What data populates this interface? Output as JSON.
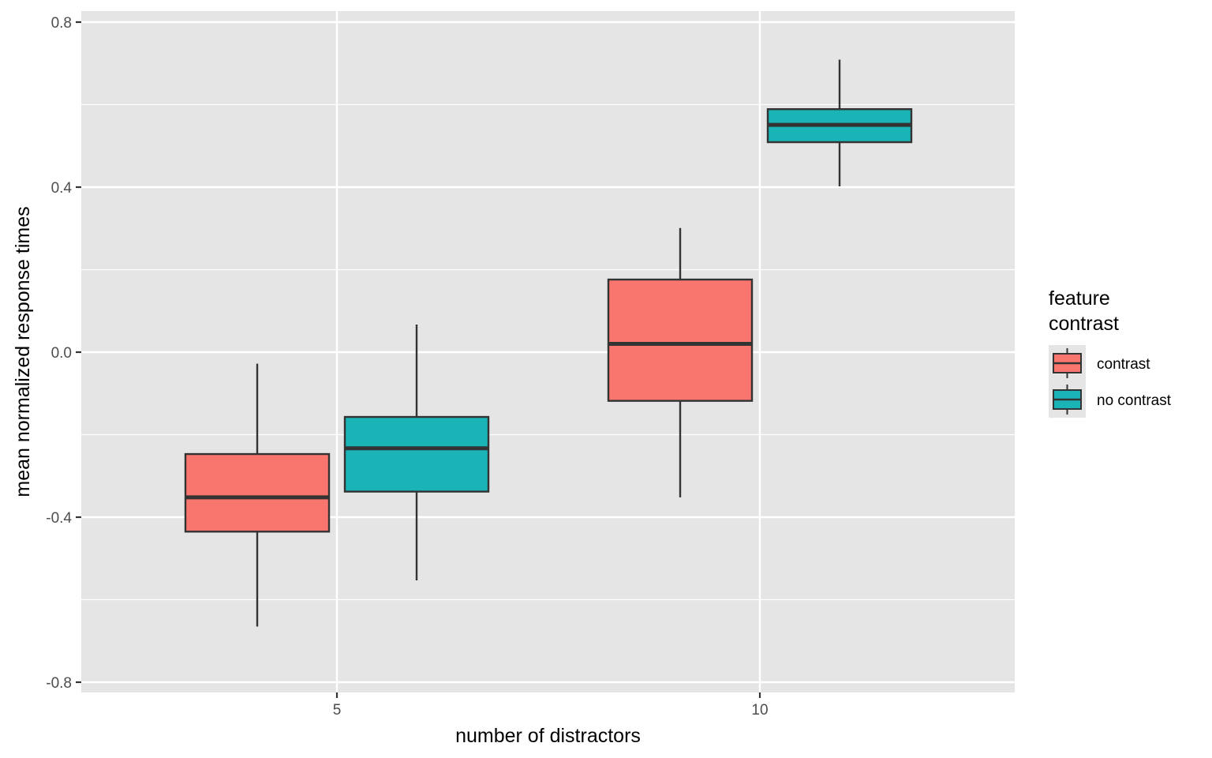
{
  "chart_data": {
    "type": "boxplot",
    "xlabel": "number of distractors",
    "ylabel": "mean normalized response times",
    "x_ticks": [
      5,
      10
    ],
    "x_tick_labels": [
      "5",
      "10"
    ],
    "xlim": [
      2,
      13
    ],
    "ylim": [
      -0.825,
      0.825
    ],
    "y_ticks": [
      -0.8,
      -0.4,
      0.0,
      0.4,
      0.8
    ],
    "y_tick_labels": [
      "-0.8",
      "-0.4",
      "0.0",
      "0.4",
      "0.8"
    ],
    "grid": true,
    "legend": {
      "title": "feature\ncontrast",
      "title_lines": [
        "feature",
        "contrast"
      ],
      "placement": "right"
    },
    "series": [
      {
        "name": "contrast",
        "color": "#F8766D",
        "boxes": [
          {
            "x": 5,
            "min": -0.665,
            "q1": -0.435,
            "median": -0.352,
            "q3": -0.247,
            "max": -0.028
          },
          {
            "x": 10,
            "min": -0.352,
            "q1": -0.118,
            "median": 0.02,
            "q3": 0.176,
            "max": 0.301
          }
        ]
      },
      {
        "name": "no contrast",
        "color": "#00BFC4",
        "boxes": [
          {
            "x": 5,
            "min": -0.553,
            "q1": -0.338,
            "median": -0.233,
            "q3": -0.157,
            "max": 0.067
          },
          {
            "x": 10,
            "min": 0.402,
            "q1": 0.509,
            "median": 0.551,
            "q3": 0.589,
            "max": 0.709
          }
        ]
      }
    ],
    "colors": {
      "panel_bg": "#e5e5e5",
      "grid": "#ffffff",
      "box_outline": "#333333",
      "contrast_fill": "#F8766D",
      "no_contrast_fill": "#1AB4B7"
    }
  }
}
